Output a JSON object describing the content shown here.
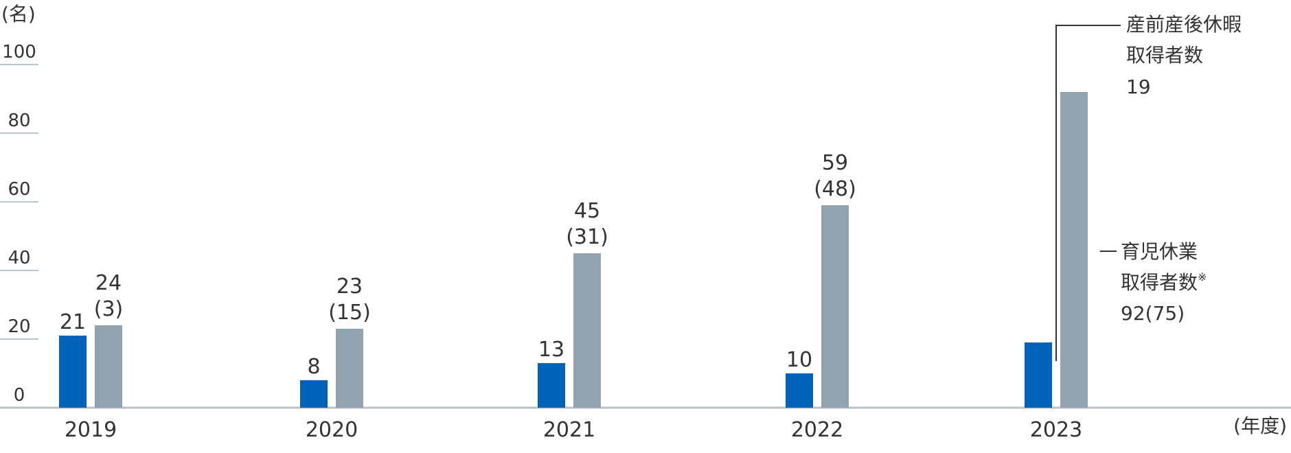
{
  "chart_data": {
    "type": "bar",
    "y_unit": "(名)",
    "x_unit": "(年度)",
    "ylim": [
      0,
      100
    ],
    "y_ticks": [
      "0",
      "20",
      "40",
      "60",
      "80",
      "100"
    ],
    "categories": [
      "2019",
      "2020",
      "2021",
      "2022",
      "2023"
    ],
    "series": [
      {
        "name": "産前産後休暇取得者数",
        "color": "#0062b8",
        "values": [
          21,
          8,
          13,
          10,
          19
        ]
      },
      {
        "name": "育児休業取得者数",
        "color": "#91a3ae",
        "values": [
          24,
          23,
          45,
          59,
          92
        ]
      }
    ],
    "bar_labels": {
      "maternity": [
        "21",
        "8",
        "13",
        "10",
        "19"
      ],
      "childcare": [
        "24",
        "23",
        "45",
        "59",
        "92"
      ],
      "childcare_paren": [
        "(3)",
        "(15)",
        "(31)",
        "(48)",
        "(75)"
      ]
    },
    "legend": {
      "maternity": {
        "line1": "産前産後休暇",
        "line2": "取得者数",
        "value": "19"
      },
      "childcare": {
        "line1": "育児休業",
        "line2": "取得者数",
        "note_mark": "※",
        "value": "92",
        "paren": "(75)"
      }
    },
    "grid": false
  }
}
